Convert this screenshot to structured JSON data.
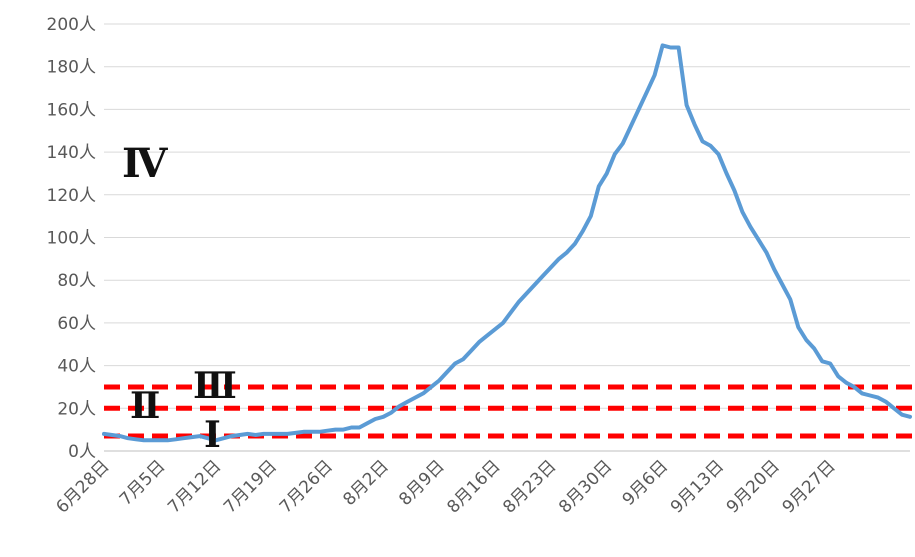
{
  "chart_data": {
    "type": "line",
    "title": "",
    "xlabel": "",
    "ylabel": "",
    "ylim": [
      0,
      200
    ],
    "yticks": [
      "0人",
      "20人",
      "40人",
      "60人",
      "80人",
      "100人",
      "120人",
      "140人",
      "160人",
      "180人",
      "200人"
    ],
    "ytick_values": [
      0,
      20,
      40,
      60,
      80,
      100,
      120,
      140,
      160,
      180,
      200
    ],
    "xticks": [
      "6月28日",
      "7月5日",
      "7月12日",
      "7月19日",
      "7月26日",
      "8月2日",
      "8月9日",
      "8月16日",
      "8月23日",
      "8月30日",
      "9月6日",
      "9月13日",
      "9月20日",
      "9月27日"
    ],
    "grid": "horizontal",
    "series": [
      {
        "color": "#5b9bd5",
        "values": [
          8,
          7.5,
          7,
          6,
          5.5,
          5,
          5,
          5,
          5,
          5.5,
          6,
          6.5,
          7,
          6,
          5,
          6,
          7,
          7.5,
          8,
          7.5,
          8,
          8,
          8,
          8,
          8.5,
          9,
          9,
          9,
          9.5,
          10,
          10,
          11,
          11,
          13,
          15,
          16,
          18,
          21,
          23,
          25,
          27,
          30,
          33,
          37,
          41,
          43,
          47,
          51,
          54,
          57,
          60,
          65,
          70,
          74,
          78,
          82,
          86,
          90,
          93,
          97,
          103,
          110,
          124,
          130,
          139,
          144,
          152,
          160,
          168,
          176,
          190,
          189,
          189,
          162,
          153,
          145,
          143,
          139,
          130,
          122,
          112,
          105,
          99,
          93,
          85,
          78,
          71,
          58,
          52,
          48,
          42,
          41,
          35,
          32,
          30,
          27,
          26,
          25,
          23,
          20,
          17,
          16
        ]
      }
    ],
    "threshold_lines": {
      "color": "#ff0000",
      "values": [
        7,
        20,
        30
      ]
    },
    "annotations": [
      "Ⅳ",
      "Ⅲ",
      "Ⅱ",
      "Ⅰ"
    ]
  }
}
